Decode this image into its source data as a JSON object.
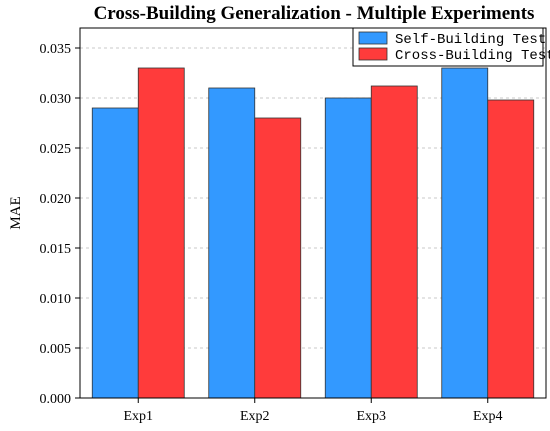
{
  "chart_data": {
    "type": "bar",
    "title": "Cross-Building Generalization - Multiple Experiments",
    "xlabel": "",
    "ylabel": "MAE",
    "categories": [
      "Exp1",
      "Exp2",
      "Exp3",
      "Exp4"
    ],
    "ylim": [
      0,
      0.037
    ],
    "yticks": [
      "0.000",
      "0.005",
      "0.010",
      "0.015",
      "0.020",
      "0.025",
      "0.030",
      "0.035"
    ],
    "grid": true,
    "legend_position": "top-right",
    "series": [
      {
        "name": "Self-Building Test",
        "color": "#3399ff",
        "values": [
          0.029,
          0.031,
          0.03,
          0.033
        ]
      },
      {
        "name": "Cross-Building Test",
        "color": "#ff3b3b",
        "values": [
          0.033,
          0.028,
          0.0312,
          0.0298
        ]
      }
    ]
  }
}
